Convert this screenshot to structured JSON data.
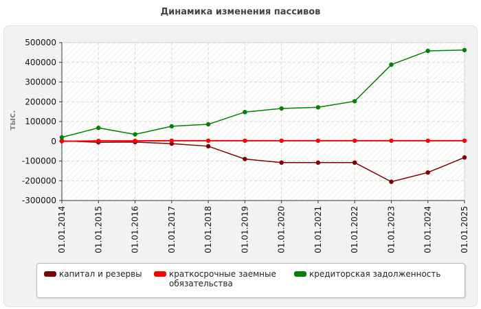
{
  "chart_data": {
    "type": "line",
    "title": "Динамика изменения пассивов",
    "ylabel": "тыс.",
    "xlabel": "",
    "ylim": [
      -300000,
      500000
    ],
    "yticks": [
      500000,
      400000,
      300000,
      200000,
      100000,
      0,
      -100000,
      -200000,
      -300000
    ],
    "categories": [
      "01.01.2014",
      "01.01.2015",
      "01.01.2016",
      "01.01.2017",
      "01.01.2018",
      "01.01.2019",
      "01.01.2020",
      "01.01.2021",
      "01.01.2022",
      "01.01.2023",
      "01.01.2024",
      "01.01.2025"
    ],
    "grid": true,
    "legend_position": "bottom",
    "series": [
      {
        "name": "капитал и резервы",
        "color": "#800000",
        "values": [
          2000,
          -5000,
          -4000,
          -12000,
          -25000,
          -90000,
          -108000,
          -108000,
          -108000,
          -205000,
          -158000,
          -82000
        ]
      },
      {
        "name": "краткосрочные заемные обязательства",
        "color": "#ff0000",
        "values": [
          0,
          2000,
          2000,
          3000,
          3000,
          3000,
          3000,
          3000,
          3000,
          3000,
          3000,
          3000
        ]
      },
      {
        "name": "кредиторская задолженность",
        "color": "#008000",
        "values": [
          20000,
          68000,
          35000,
          76000,
          86000,
          148000,
          166000,
          172000,
          203000,
          388000,
          458000,
          462000
        ]
      }
    ]
  }
}
